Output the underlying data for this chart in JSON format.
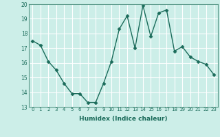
{
  "x": [
    0,
    1,
    2,
    3,
    4,
    5,
    6,
    7,
    8,
    9,
    10,
    11,
    12,
    13,
    14,
    15,
    16,
    17,
    18,
    19,
    20,
    21,
    22,
    23
  ],
  "y": [
    17.5,
    17.2,
    16.1,
    15.5,
    14.6,
    13.9,
    13.9,
    13.3,
    13.3,
    14.6,
    16.1,
    18.3,
    19.2,
    17.0,
    19.9,
    17.8,
    19.4,
    19.6,
    16.8,
    17.1,
    16.4,
    16.1,
    15.9,
    15.2
  ],
  "line_color": "#1a6b5a",
  "marker": "D",
  "marker_size": 2.5,
  "bg_color": "#cceee8",
  "grid_color": "#ffffff",
  "grid_minor_color": "#e8f8f5",
  "xlabel": "Humidex (Indice chaleur)",
  "xlim": [
    -0.5,
    23.5
  ],
  "ylim": [
    13,
    20
  ],
  "yticks": [
    13,
    14,
    15,
    16,
    17,
    18,
    19,
    20
  ],
  "xticks": [
    0,
    1,
    2,
    3,
    4,
    5,
    6,
    7,
    8,
    9,
    10,
    11,
    12,
    13,
    14,
    15,
    16,
    17,
    18,
    19,
    20,
    21,
    22,
    23
  ],
  "xtick_labels": [
    "0",
    "1",
    "2",
    "3",
    "4",
    "5",
    "6",
    "7",
    "8",
    "9",
    "10",
    "11",
    "12",
    "13",
    "14",
    "15",
    "16",
    "17",
    "18",
    "19",
    "20",
    "21",
    "22",
    "23"
  ],
  "linewidth": 1.0,
  "spine_color": "#5a9a8a",
  "tick_color": "#1a6b5a",
  "label_color": "#1a6b5a"
}
